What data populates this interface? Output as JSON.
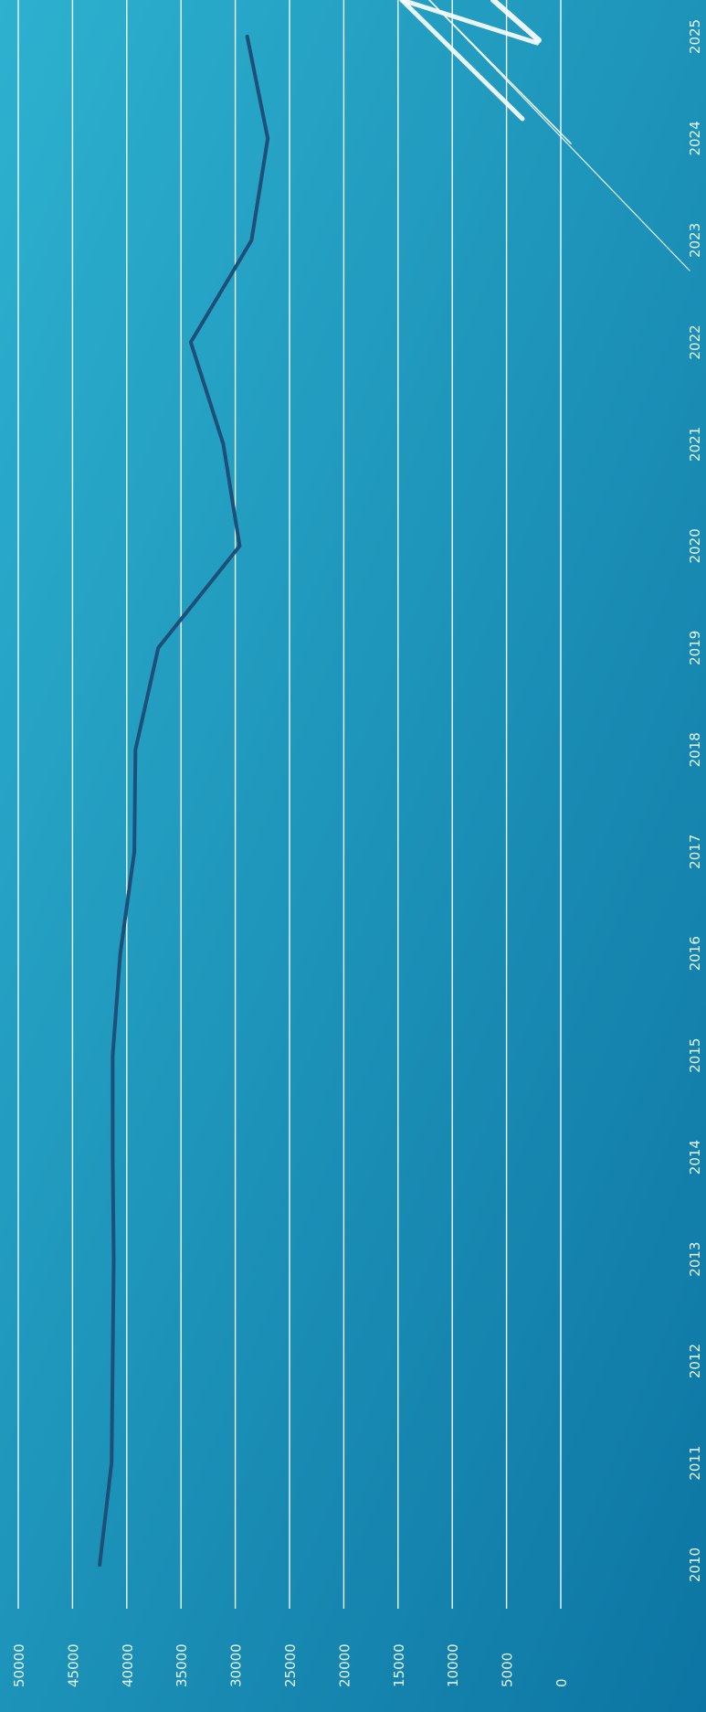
{
  "chart_data": {
    "type": "line",
    "orientation": "rotated-90-clockwise",
    "x": [
      "2010",
      "2011",
      "2012",
      "2013",
      "2014",
      "2015",
      "2016",
      "2017",
      "2018",
      "2019",
      "2020",
      "2021",
      "2022",
      "2023",
      "2024",
      "2025"
    ],
    "y_ticks": [
      "0",
      "5000",
      "10000",
      "15000",
      "20000",
      "25000",
      "30000",
      "35000",
      "40000",
      "45000",
      "50000"
    ],
    "ylim": [
      0,
      50000
    ],
    "grid": true,
    "series": [
      {
        "values": [
          42500,
          41400,
          41300,
          41200,
          41300,
          41300,
          40600,
          39300,
          39200,
          37100,
          29600,
          31100,
          34100,
          28500,
          27000,
          28900
        ]
      }
    ]
  },
  "colors": {
    "background_top": "#2db1cf",
    "background_bottom": "#0d75a3",
    "gridline": "#ffffff",
    "line": "#1d4f79",
    "tick_label": "#e8f6fb",
    "decoration": "#ffffff"
  }
}
